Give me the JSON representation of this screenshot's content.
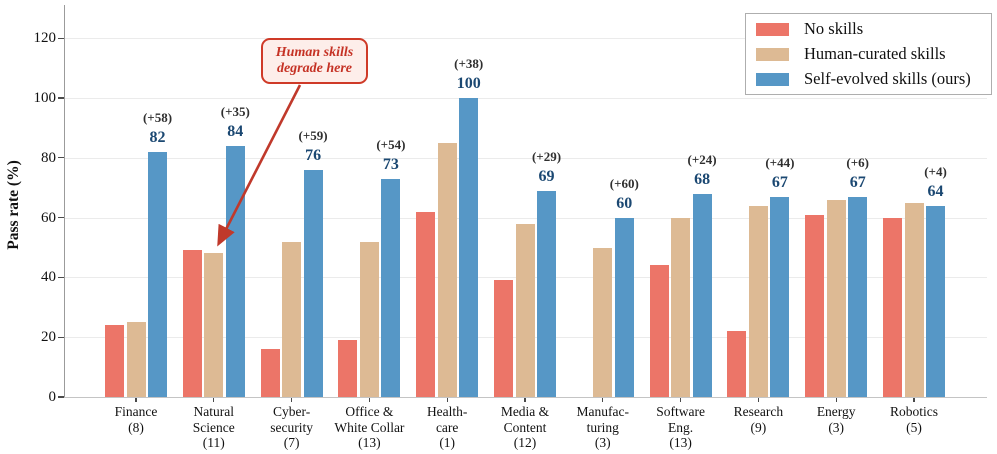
{
  "chart_data": {
    "type": "bar",
    "title": "",
    "ylabel": "Pass rate (%)",
    "ylim": [
      0,
      130
    ],
    "yticks": [
      0,
      20,
      40,
      60,
      80,
      100,
      120
    ],
    "grid": true,
    "legend_position": "top-right",
    "categories": [
      {
        "lines": [
          "Finance",
          "(8)"
        ]
      },
      {
        "lines": [
          "Natural",
          "Science",
          "(11)"
        ]
      },
      {
        "lines": [
          "Cyber-",
          "security",
          "(7)"
        ]
      },
      {
        "lines": [
          "Office &",
          "White Collar",
          "(13)"
        ]
      },
      {
        "lines": [
          "Health-",
          "care",
          "(1)"
        ]
      },
      {
        "lines": [
          "Media &",
          "Content",
          "(12)"
        ]
      },
      {
        "lines": [
          "Manufac-",
          "turing",
          "(3)"
        ]
      },
      {
        "lines": [
          "Software",
          "Eng.",
          "(13)"
        ]
      },
      {
        "lines": [
          "Research",
          "(9)"
        ]
      },
      {
        "lines": [
          "Energy",
          "(3)"
        ]
      },
      {
        "lines": [
          "Robotics",
          "(5)"
        ]
      }
    ],
    "series": [
      {
        "name": "No skills",
        "color": "#ec7568",
        "values": [
          24,
          49,
          16,
          19,
          62,
          39,
          0,
          44,
          22,
          61,
          60
        ]
      },
      {
        "name": "Human-curated skills",
        "color": "#ddba94",
        "values": [
          25,
          48,
          52,
          52,
          85,
          58,
          50,
          60,
          64,
          66,
          65
        ]
      },
      {
        "name": "Self-evolved skills (ours)",
        "color": "#5697c6",
        "values": [
          82,
          84,
          76,
          73,
          100,
          69,
          60,
          68,
          67,
          67,
          64
        ],
        "value_labels": [
          "82",
          "84",
          "76",
          "73",
          "100",
          "69",
          "60",
          "68",
          "67",
          "67",
          "64"
        ],
        "delta_labels": [
          "(+58)",
          "(+35)",
          "(+59)",
          "(+54)",
          "(+38)",
          "(+29)",
          "(+60)",
          "(+24)",
          "(+44)",
          "(+6)",
          "(+4)"
        ]
      }
    ],
    "annotation": {
      "lines": [
        "Human skills",
        "degrade here"
      ],
      "color": "#c53225",
      "points_to": "Human-curated skills bar of Natural Science"
    }
  },
  "colors": {
    "value_label": "#1b4872",
    "delta_label": "#2f2f2f",
    "annotation_red": "#c0392b",
    "gridline": "#ebebeb"
  }
}
